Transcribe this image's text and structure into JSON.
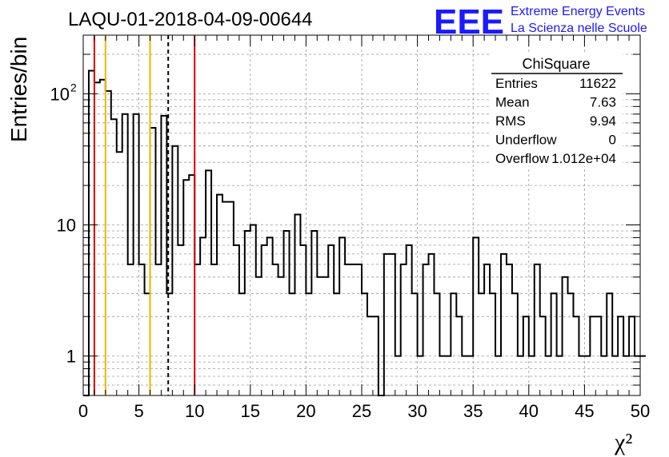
{
  "header": {
    "run_title": "LAQU-01-2018-04-09-00644"
  },
  "logo": {
    "acronym": "EEE",
    "line1": "Extreme Energy Events",
    "line2": "La Scienza nelle Scuole",
    "color": "#1a1aff"
  },
  "stats_box": {
    "title": "ChiSquare",
    "rows": [
      {
        "label": "Entries",
        "value": "11622"
      },
      {
        "label": "Mean",
        "value": "7.63"
      },
      {
        "label": "RMS",
        "value": "9.94"
      },
      {
        "label": "Underflow",
        "value": "0"
      },
      {
        "label": "Overflow",
        "value": "1.012e+04"
      }
    ]
  },
  "chart_data": {
    "type": "histogram",
    "xlabel": "χ²",
    "ylabel": "Entries/bin",
    "x_scale": "linear",
    "y_scale": "log",
    "xlim": [
      0,
      50
    ],
    "ylim": [
      0.5,
      280
    ],
    "bin_width": 0.5,
    "grid": true,
    "x_ticks": [
      "0",
      "5",
      "10",
      "15",
      "20",
      "25",
      "30",
      "35",
      "40",
      "45",
      "50"
    ],
    "y_ticks": [
      {
        "value": 1,
        "label": "1"
      },
      {
        "value": 10,
        "label": "10"
      },
      {
        "value": 100,
        "label": "10",
        "exponent": "2"
      }
    ],
    "values": [
      0.5,
      150,
      122,
      128,
      105,
      64,
      36,
      70,
      5,
      70,
      5,
      3,
      55,
      5,
      68,
      3,
      40,
      7,
      22,
      24,
      5,
      8,
      26,
      5,
      17,
      15,
      15,
      7,
      3,
      9,
      10,
      4,
      7,
      8,
      5,
      4,
      9,
      3,
      12,
      7,
      3,
      9,
      4,
      4,
      7,
      3,
      8,
      5,
      5,
      5,
      3,
      2,
      2,
      0.5,
      6,
      6,
      1,
      5,
      7,
      3,
      1,
      5,
      6,
      3,
      1,
      1,
      3,
      2,
      1,
      1,
      8,
      3,
      5,
      3,
      1,
      6,
      5,
      3,
      1,
      2,
      1,
      5,
      2,
      1,
      3,
      1,
      4,
      3,
      2,
      1,
      1,
      2,
      2,
      1,
      3,
      1,
      2,
      1,
      2,
      1,
      1
    ],
    "vertical_lines": [
      {
        "x": 1.0,
        "color": "#dd0000",
        "style": "solid"
      },
      {
        "x": 2.0,
        "color": "#f0b400",
        "style": "solid"
      },
      {
        "x": 6.0,
        "color": "#f0b400",
        "style": "solid"
      },
      {
        "x": 7.63,
        "color": "#000000",
        "style": "dashed"
      },
      {
        "x": 10.0,
        "color": "#dd0000",
        "style": "solid"
      }
    ]
  }
}
